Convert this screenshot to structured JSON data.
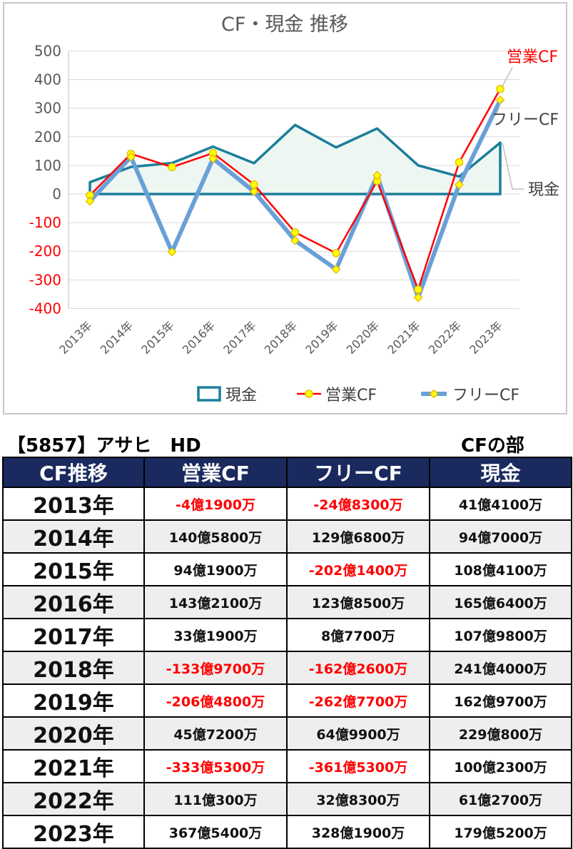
{
  "chart_data": {
    "type": "line",
    "title": "CF・現金 推移",
    "categories": [
      "2013年",
      "2014年",
      "2015年",
      "2016年",
      "2017年",
      "2018年",
      "2019年",
      "2020年",
      "2021年",
      "2022年",
      "2023年"
    ],
    "ylim": [
      -400,
      500
    ],
    "yticks": [
      500,
      400,
      300,
      200,
      100,
      0,
      -100,
      -200,
      -300,
      -400
    ],
    "grid": true,
    "legend_position": "bottom",
    "series": [
      {
        "name": "現金",
        "kind": "area",
        "color": "#1a7e9a",
        "values": [
          41.41,
          94.7,
          108.41,
          165.64,
          107.98,
          241.4,
          162.97,
          229.08,
          100.23,
          61.27,
          179.52
        ]
      },
      {
        "name": "営業CF",
        "kind": "line",
        "color": "#ff0000",
        "values": [
          -4.19,
          140.58,
          94.19,
          143.21,
          33.19,
          -133.97,
          -206.48,
          45.72,
          -333.53,
          111.03,
          367.54
        ]
      },
      {
        "name": "フリーCF",
        "kind": "line",
        "color": "#6aa0d8",
        "values": [
          -24.83,
          129.68,
          -202.14,
          123.85,
          8.77,
          -162.26,
          -262.77,
          64.99,
          -361.53,
          32.83,
          328.19
        ]
      }
    ],
    "annotations": [
      "営業CF",
      "フリーCF",
      "現金"
    ]
  },
  "table": {
    "company_title": "【5857】アサヒ　HD",
    "section_title": "CFの部",
    "headers": [
      "CF推移",
      "営業CF",
      "フリーCF",
      "現金"
    ],
    "rows": [
      {
        "year": "2013年",
        "op": "-4億1900万",
        "free": "-24億8300万",
        "cash": "41億4100万"
      },
      {
        "year": "2014年",
        "op": "140億5800万",
        "free": "129億6800万",
        "cash": "94億7000万"
      },
      {
        "year": "2015年",
        "op": "94億1900万",
        "free": "-202億1400万",
        "cash": "108億4100万"
      },
      {
        "year": "2016年",
        "op": "143億2100万",
        "free": "123億8500万",
        "cash": "165億6400万"
      },
      {
        "year": "2017年",
        "op": "33億1900万",
        "free": "8億7700万",
        "cash": "107億9800万"
      },
      {
        "year": "2018年",
        "op": "-133億9700万",
        "free": "-162億2600万",
        "cash": "241億4000万"
      },
      {
        "year": "2019年",
        "op": "-206億4800万",
        "free": "-262億7700万",
        "cash": "162億9700万"
      },
      {
        "year": "2020年",
        "op": "45億7200万",
        "free": "64億9900万",
        "cash": "229億800万"
      },
      {
        "year": "2021年",
        "op": "-333億5300万",
        "free": "-361億5300万",
        "cash": "100億2300万"
      },
      {
        "year": "2022年",
        "op": "111億300万",
        "free": "32億8300万",
        "cash": "61億2700万"
      },
      {
        "year": "2023年",
        "op": "367億5400万",
        "free": "328億1900万",
        "cash": "179億5200万"
      }
    ]
  }
}
